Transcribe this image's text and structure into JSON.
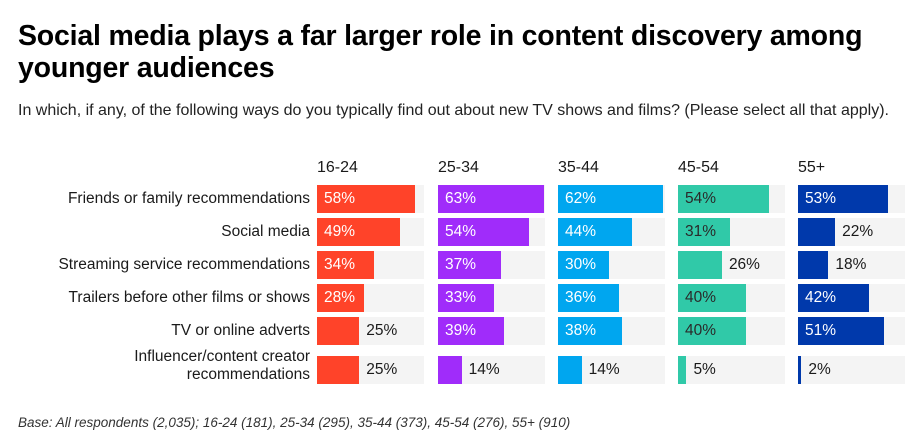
{
  "title": "Social media plays a far larger role in content discovery among younger audiences",
  "subtitle": "In which, if any, of the following ways do you typically find out about new TV shows and films? (Please select all that apply).",
  "footer": "Base: All respondents (2,035); 16-24 (181), 25-34 (295), 35-44 (373), 45-54 (276), 55+ (910)",
  "chart_data": {
    "type": "bar",
    "orientation": "horizontal",
    "unit": "%",
    "categories": [
      "Friends or family recommendations",
      "Social media",
      "Streaming service recommendations",
      "Trailers before other films or shows",
      "TV or online adverts",
      "Influencer/content creator recommendations"
    ],
    "series": [
      {
        "name": "16-24",
        "color": "#ff4329",
        "label_color": "#ffffff",
        "values": [
          58,
          49,
          34,
          28,
          25,
          25
        ]
      },
      {
        "name": "25-34",
        "color": "#a02cfa",
        "label_color": "#ffffff",
        "values": [
          63,
          54,
          37,
          33,
          39,
          14
        ]
      },
      {
        "name": "35-44",
        "color": "#00a6ef",
        "label_color": "#ffffff",
        "values": [
          62,
          44,
          30,
          36,
          38,
          14
        ]
      },
      {
        "name": "45-54",
        "color": "#30c9a8",
        "label_color": "#2a2a2a",
        "values": [
          54,
          31,
          26,
          40,
          40,
          5
        ]
      },
      {
        "name": "55+",
        "color": "#0039ab",
        "label_color": "#ffffff",
        "values": [
          53,
          22,
          18,
          42,
          51,
          2
        ]
      }
    ],
    "track_color": "#f4f4f4",
    "grid": false,
    "legend": "column headers"
  }
}
